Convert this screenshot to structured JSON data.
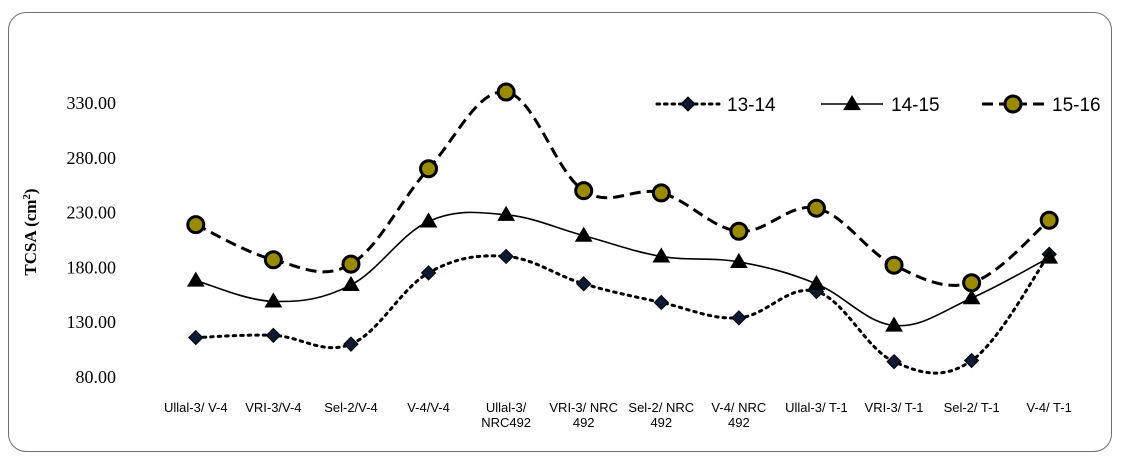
{
  "chart_data": {
    "type": "line",
    "ylabel": "TCSA (cm",
    "ylabel_sup": "2",
    "ylabel_close": ")",
    "ylim": [
      80,
      330
    ],
    "yticks": [
      "80.00",
      "130.00",
      "180.00",
      "230.00",
      "280.00",
      "330.00"
    ],
    "ytick_values": [
      80,
      130,
      180,
      230,
      280,
      330
    ],
    "legend_position": "top-right",
    "grid": false,
    "categories": [
      [
        "Ullal-3/ V-4"
      ],
      [
        "VRI-3/V-4"
      ],
      [
        "Sel-2/V-4"
      ],
      [
        "V-4/V-4"
      ],
      [
        "Ullal-3/",
        "NRC492"
      ],
      [
        "VRI-3/ NRC",
        "492"
      ],
      [
        "Sel-2/ NRC",
        "492"
      ],
      [
        "V-4/ NRC",
        "492"
      ],
      [
        "Ullal-3/ T-1"
      ],
      [
        "VRI-3/ T-1"
      ],
      [
        "Sel-2/ T-1"
      ],
      [
        "V-4/ T-1"
      ]
    ],
    "series": [
      {
        "name": "13-14",
        "marker": "diamond",
        "dash": "dotted",
        "color": "#000000",
        "values": [
          116,
          118,
          110,
          175,
          190,
          165,
          148,
          134,
          158,
          94,
          95,
          192
        ]
      },
      {
        "name": "14-15",
        "marker": "triangle",
        "dash": "solid",
        "color": "#000000",
        "values": [
          168,
          149,
          164,
          222,
          228,
          209,
          190,
          185,
          165,
          127,
          152,
          189
        ]
      },
      {
        "name": "15-16",
        "marker": "circle",
        "dash": "dashed",
        "color": "#000000",
        "fill": "#9a8a00",
        "values": [
          219,
          187,
          183,
          270,
          340,
          250,
          248,
          213,
          234,
          182,
          166,
          223
        ]
      }
    ]
  }
}
